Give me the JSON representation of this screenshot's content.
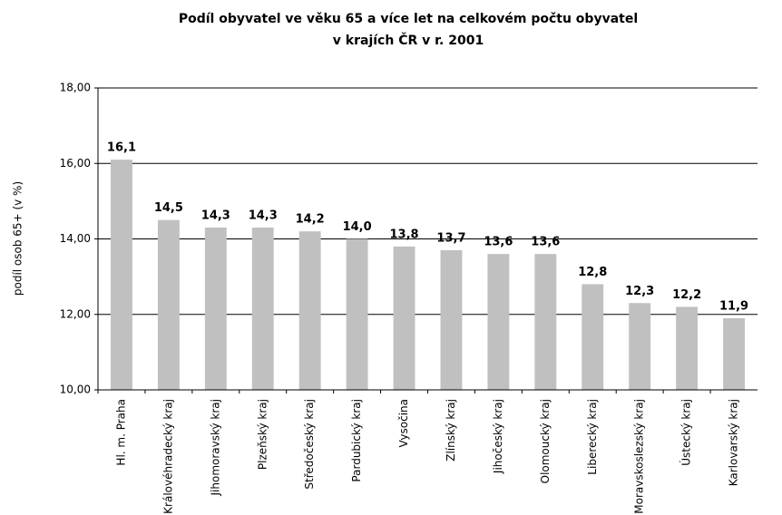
{
  "chart_data": {
    "type": "bar",
    "title": [
      "Podíl obyvatel ve věku 65 a více let na celkovém počtu obyvatel",
      "v krajích ČR v  r. 2001"
    ],
    "ylabel": "podíl osob 65+ (v %)",
    "categories": [
      "Hl. m. Praha",
      "Královéhradecký kraj",
      "Jihomoravský kraj",
      "Plzeňský kraj",
      "Středočeský kraj",
      "Pardubický kraj",
      "Vysočina",
      "Zlínský kraj",
      "Jihočeský kraj",
      "Olomoucký kraj",
      "Liberecký kraj",
      "Moravskoslezský kraj",
      "Ústecký kraj",
      "Karlovarský kraj"
    ],
    "values": [
      16.1,
      14.5,
      14.3,
      14.3,
      14.2,
      14.0,
      13.8,
      13.7,
      13.6,
      13.6,
      12.8,
      12.3,
      12.2,
      11.9
    ],
    "value_labels": [
      "16,1",
      "14,5",
      "14,3",
      "14,3",
      "14,2",
      "14,0",
      "13,8",
      "13,7",
      "13,6",
      "13,6",
      "12,8",
      "12,3",
      "12,2",
      "11,9"
    ],
    "color": "#c0c0c0",
    "ylim": [
      10,
      18
    ],
    "yticks": [
      {
        "value": 10,
        "label": "10,00"
      },
      {
        "value": 12,
        "label": "12,00"
      },
      {
        "value": 14,
        "label": "14,00"
      },
      {
        "value": 16,
        "label": "16,00"
      },
      {
        "value": 18,
        "label": "18,00"
      }
    ],
    "grid": true
  }
}
